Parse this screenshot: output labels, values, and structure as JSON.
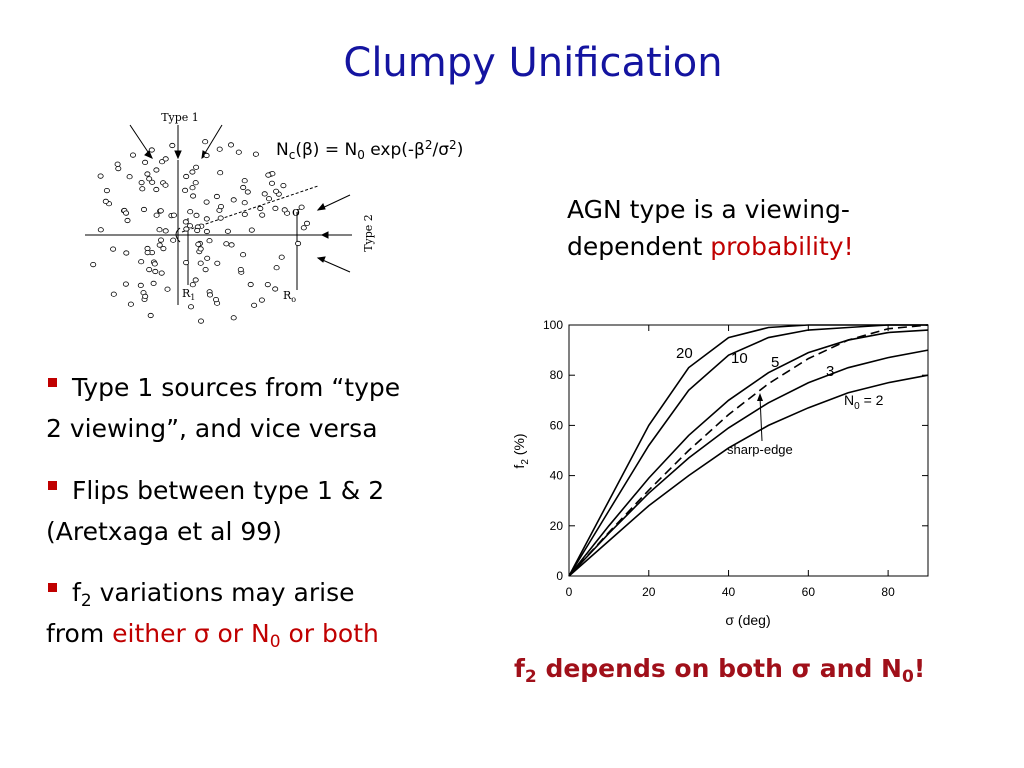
{
  "title": "Clumpy Unification",
  "diagram": {
    "type1": "Type 1",
    "type2": "Type 2",
    "sigma": "σ",
    "r1": "R",
    "r1_sub": "1",
    "ro": "R",
    "ro_sub": "o"
  },
  "formula": [
    "N",
    "c",
    "(β) = N",
    "0",
    " exp(-β",
    "2",
    "/σ",
    "2",
    ")"
  ],
  "statement": {
    "line1": "AGN type is a viewing-",
    "line2": "dependent ",
    "highlight": "probability!"
  },
  "bullets": [
    {
      "lines": [
        "Type 1 sources from “type",
        "2 viewing”, and vice versa"
      ]
    },
    {
      "lines": [
        "Flips between type 1 & 2",
        "(Aretxaga et al 99)"
      ]
    },
    {
      "line1": [
        "f",
        "2",
        " variations may arise"
      ],
      "line2": [
        "from ",
        "either σ or N",
        "0",
        " or both"
      ]
    }
  ],
  "conclusion": [
    "f",
    "2",
    " depends on both σ and N",
    "0",
    "!"
  ],
  "chart_data": {
    "type": "line",
    "xlabel": "σ (deg)",
    "ylabel": [
      "f",
      "2",
      " (%)"
    ],
    "x": [
      0,
      10,
      20,
      30,
      40,
      50,
      60,
      70,
      80,
      90
    ],
    "series": [
      {
        "name": "20",
        "color": "#000000",
        "style": "solid",
        "values": [
          0,
          30,
          60,
          83,
          95,
          99,
          100,
          100,
          100,
          100
        ]
      },
      {
        "name": "10",
        "color": "#000000",
        "style": "solid",
        "values": [
          0,
          26,
          52,
          74,
          88,
          95,
          98,
          99,
          100,
          100
        ]
      },
      {
        "name": "5",
        "color": "#000000",
        "style": "solid",
        "values": [
          0,
          20,
          39,
          56,
          70,
          81,
          89,
          94,
          97,
          98
        ]
      },
      {
        "name": "3",
        "color": "#000000",
        "style": "solid",
        "values": [
          0,
          17,
          33,
          47,
          59,
          69,
          77,
          83,
          87,
          90
        ]
      },
      {
        "name": "2",
        "color": "#000000",
        "style": "solid",
        "values": [
          0,
          14,
          28,
          40,
          51,
          60,
          67,
          73,
          77,
          80
        ]
      },
      {
        "name": "sharp-edge",
        "color": "#000000",
        "style": "dashed",
        "values": [
          0,
          17.4,
          34.2,
          50,
          64.3,
          76.6,
          86.6,
          94,
          98.5,
          100
        ]
      }
    ],
    "n0_prefix": [
      "N",
      "0",
      " = "
    ],
    "xlim": [
      0,
      90
    ],
    "ylim": [
      0,
      100
    ],
    "xticks": [
      0,
      20,
      40,
      60,
      80
    ],
    "yticks": [
      0,
      20,
      40,
      60,
      80,
      100
    ],
    "grid": false
  }
}
